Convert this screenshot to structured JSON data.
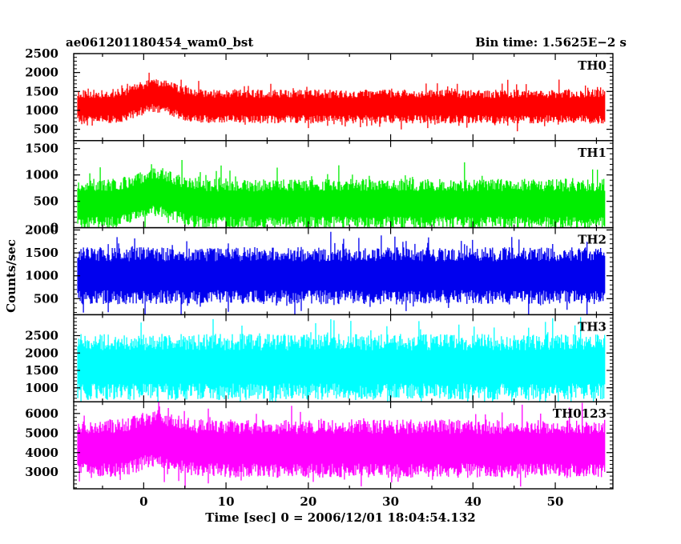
{
  "header": {
    "left_title": "ae061201180454_wam0_bst",
    "right_title": "Bin time: 1.5625E−2 s"
  },
  "chart_data": {
    "type": "line",
    "xlabel": "Time [sec] 0 = 2006/12/01 18:04:54.132",
    "ylabel": "Counts/sec",
    "xlim": [
      -8.5,
      57
    ],
    "data_xrange": [
      -8,
      56
    ],
    "xticks": [
      0,
      10,
      20,
      30,
      40,
      50
    ],
    "panels": [
      {
        "name": "TH0",
        "color": "#ff0000",
        "ylim": [
          200,
          2500
        ],
        "yticks": [
          500,
          1000,
          1500,
          2000,
          2500
        ],
        "base": [
          600,
          1100,
          1500
        ],
        "seed": 11,
        "burst": {
          "center": 1.5,
          "width": 3,
          "amp": 300
        }
      },
      {
        "name": "TH1",
        "color": "#00ee00",
        "ylim": [
          0,
          1650
        ],
        "yticks": [
          0,
          500,
          1000,
          1500
        ],
        "base": [
          100,
          450,
          1050
        ],
        "seed": 23,
        "burst": {
          "center": 1.5,
          "width": 3,
          "amp": 220
        }
      },
      {
        "name": "TH2",
        "color": "#0000ee",
        "ylim": [
          150,
          2050
        ],
        "yticks": [
          500,
          1000,
          1500,
          2000
        ],
        "base": [
          450,
          1000,
          1700
        ],
        "seed": 37,
        "burst": null
      },
      {
        "name": "TH3",
        "color": "#00ffff",
        "ylim": [
          600,
          3100
        ],
        "yticks": [
          1000,
          1500,
          2000,
          2500
        ],
        "base": [
          900,
          1600,
          2800
        ],
        "seed": 41,
        "burst": null
      },
      {
        "name": "TH0123",
        "color": "#ff00ff",
        "ylim": [
          2150,
          6600
        ],
        "yticks": [
          3000,
          4000,
          5000,
          6000
        ],
        "base": [
          2700,
          4200,
          5700
        ],
        "seed": 53,
        "burst": {
          "center": 1.5,
          "width": 3,
          "amp": 500
        }
      }
    ]
  }
}
